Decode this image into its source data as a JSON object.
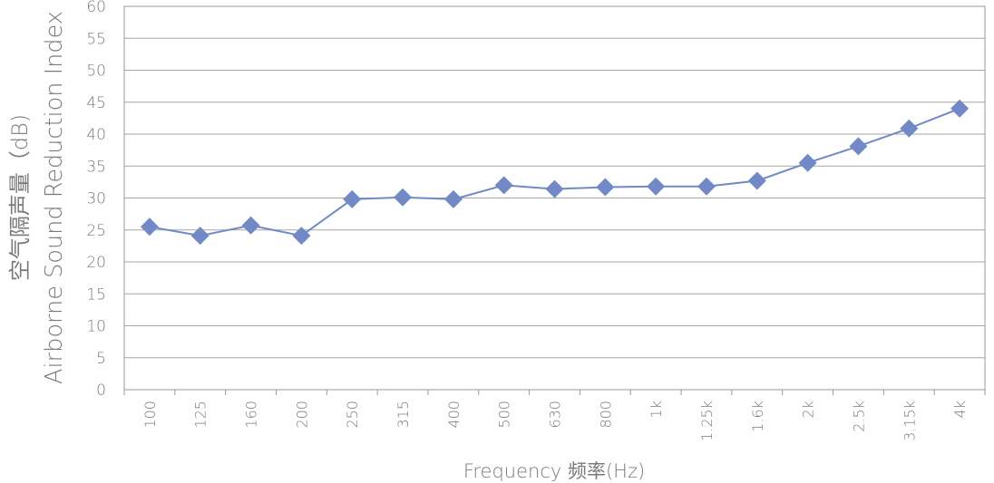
{
  "chart_data": {
    "type": "line",
    "ylabel_line1": "空气隔声量（dB)",
    "ylabel_line2": "Airborne Sound Reduction Index",
    "xlabel": "Frequency 频率(Hz)",
    "ylim": [
      0,
      60
    ],
    "yticks": [
      "0",
      "5",
      "10",
      "15",
      "20",
      "25",
      "30",
      "35",
      "40",
      "45",
      "50",
      "55",
      "60"
    ],
    "grid": true,
    "categories": [
      "100",
      "125",
      "160",
      "200",
      "250",
      "315",
      "400",
      "500",
      "630",
      "800",
      "1k",
      "1.25k",
      "1.6k",
      "2k",
      "2.5k",
      "3.15k",
      "4k"
    ],
    "values": [
      25.5,
      24.1,
      25.7,
      24.1,
      29.8,
      30.1,
      29.8,
      32.0,
      31.4,
      31.7,
      31.8,
      31.8,
      32.7,
      35.5,
      38.1,
      40.9,
      44.0
    ],
    "marker": "diamond",
    "color": "#7189c6"
  }
}
